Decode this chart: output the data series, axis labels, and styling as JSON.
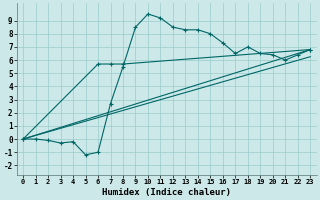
{
  "xlabel": "Humidex (Indice chaleur)",
  "bg_color": "#cce8e8",
  "grid_color": "#99cccc",
  "line_color": "#006666",
  "xlim": [
    -0.5,
    23.5
  ],
  "ylim": [
    -2.7,
    10.3
  ],
  "xticks": [
    0,
    1,
    2,
    3,
    4,
    5,
    6,
    7,
    8,
    9,
    10,
    11,
    12,
    13,
    14,
    15,
    16,
    17,
    18,
    19,
    20,
    21,
    22,
    23
  ],
  "yticks": [
    -2,
    -1,
    0,
    1,
    2,
    3,
    4,
    5,
    6,
    7,
    8,
    9
  ],
  "series0_x": [
    0,
    1,
    2,
    3,
    4,
    5,
    6,
    7,
    8,
    9,
    10,
    11,
    12,
    13,
    14,
    15,
    16,
    17,
    18,
    19,
    20,
    21,
    22,
    23
  ],
  "series0_y": [
    0,
    0,
    -0.1,
    -0.3,
    -0.2,
    -1.2,
    -1.0,
    2.7,
    5.5,
    8.5,
    9.5,
    9.2,
    8.5,
    8.3,
    8.3,
    8.0,
    7.3,
    6.5,
    7.0,
    6.5,
    6.4,
    6.0,
    6.4,
    6.8
  ],
  "series1_x": [
    0,
    6,
    7,
    8,
    23
  ],
  "series1_y": [
    0,
    5.7,
    5.7,
    5.7,
    6.8
  ],
  "line1_x": [
    0,
    23
  ],
  "line1_y": [
    0,
    6.8
  ],
  "line2_x": [
    0,
    23
  ],
  "line2_y": [
    0,
    6.8
  ]
}
